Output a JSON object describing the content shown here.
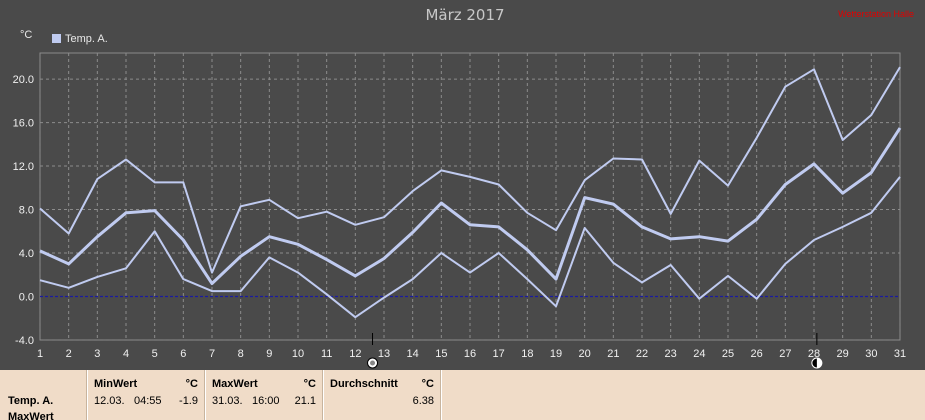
{
  "title": "März 2017",
  "watermark": "Wetterstation Halle",
  "unit": "°C",
  "colors": {
    "background": "#4a4a4a",
    "series": "#c0cbf0",
    "zero_line": "#1a1aa0",
    "panel": "#f0dcc8",
    "watermark": "#e00000"
  },
  "chart_data": {
    "type": "line",
    "x": [
      1,
      2,
      3,
      4,
      5,
      6,
      7,
      8,
      9,
      10,
      11,
      12,
      13,
      14,
      15,
      16,
      17,
      18,
      19,
      20,
      21,
      22,
      23,
      24,
      25,
      26,
      27,
      28,
      29,
      30,
      31
    ],
    "xlim": [
      1,
      31
    ],
    "ylim": [
      -4,
      22.4
    ],
    "yticks": [
      "-4.0",
      "0.0",
      "4.0",
      "8.0",
      "12.0",
      "16.0",
      "20.0"
    ],
    "grid": true,
    "legend": "top-left",
    "series": [
      {
        "name": "Temp. A.",
        "role": "max",
        "values": [
          8.1,
          5.8,
          10.8,
          12.6,
          10.5,
          10.5,
          2.2,
          8.3,
          8.9,
          7.2,
          7.8,
          6.6,
          7.3,
          9.7,
          11.6,
          11.0,
          10.3,
          7.7,
          6.1,
          10.7,
          12.7,
          12.6,
          7.6,
          12.5,
          10.2,
          14.6,
          19.3,
          20.9,
          14.4,
          16.7,
          21.1
        ]
      },
      {
        "name": "Temp. A.",
        "role": "mean",
        "values": [
          4.2,
          3.0,
          5.5,
          7.7,
          7.9,
          5.2,
          1.2,
          3.7,
          5.5,
          4.8,
          3.4,
          1.9,
          3.5,
          5.9,
          8.6,
          6.6,
          6.4,
          4.3,
          1.6,
          9.1,
          8.5,
          6.4,
          5.3,
          5.5,
          5.1,
          7.1,
          10.3,
          12.2,
          9.5,
          11.4,
          15.5
        ]
      },
      {
        "name": "Temp. A.",
        "role": "min",
        "values": [
          1.5,
          0.8,
          1.8,
          2.6,
          6.0,
          1.6,
          0.5,
          0.5,
          3.6,
          2.2,
          0.2,
          -1.9,
          -0.1,
          1.6,
          4.0,
          2.2,
          4.0,
          1.6,
          -0.9,
          6.3,
          3.1,
          1.3,
          2.9,
          -0.2,
          1.9,
          -0.2,
          3.0,
          5.2,
          6.4,
          7.7,
          11.0
        ]
      }
    ],
    "markers": [
      {
        "day": 12.6,
        "icon": "moon-full-icon"
      },
      {
        "day": 28.1,
        "icon": "moon-new-icon"
      }
    ]
  },
  "stats": {
    "row_label_1": "Temp. A.",
    "row_label_2": "MaxWert",
    "min": {
      "header": "MinWert",
      "unit": "°C",
      "date": "12.03.",
      "time": "04:55",
      "value": "-1.9"
    },
    "max": {
      "header": "MaxWert",
      "unit": "°C",
      "date": "31.03.",
      "time": "16:00",
      "value": "21.1"
    },
    "avg": {
      "header": "Durchschnitt",
      "unit": "°C",
      "value": "6.38"
    }
  }
}
